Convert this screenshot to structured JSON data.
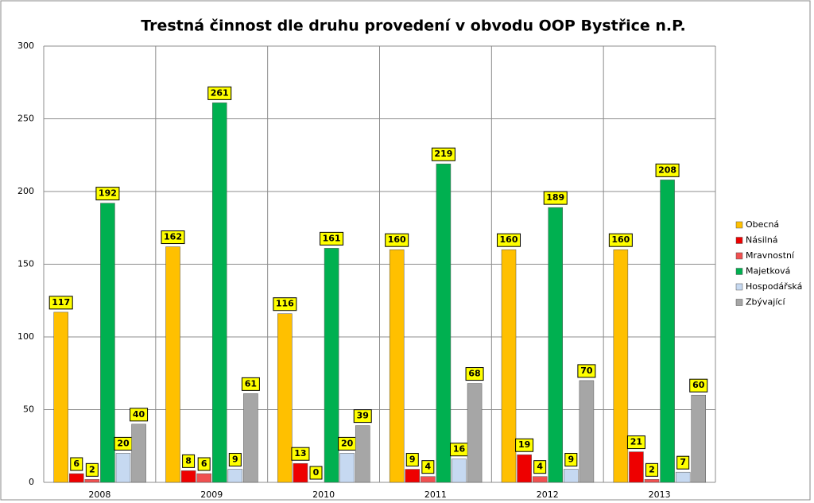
{
  "chart_data": {
    "type": "bar",
    "title": "Trestná činnost dle druhu provedení v obvodu OOP Bystřice n.P.",
    "categories": [
      "2008",
      "2009",
      "2010",
      "2011",
      "2012",
      "2013"
    ],
    "series": [
      {
        "name": "Obecná",
        "color": "#ffc000",
        "values": [
          117,
          162,
          116,
          160,
          160,
          160
        ]
      },
      {
        "name": "Násilná",
        "color": "#ee0000",
        "values": [
          6,
          8,
          13,
          9,
          19,
          21
        ]
      },
      {
        "name": "Mravnostní",
        "color": "#f05050",
        "values": [
          2,
          6,
          0,
          4,
          4,
          2
        ]
      },
      {
        "name": "Majetková",
        "color": "#00b050",
        "values": [
          192,
          261,
          161,
          219,
          189,
          208
        ]
      },
      {
        "name": "Hospodářská",
        "color": "#c6d9f1",
        "values": [
          20,
          9,
          20,
          16,
          9,
          7
        ]
      },
      {
        "name": "Zbývající",
        "color": "#a6a6a6",
        "values": [
          40,
          61,
          39,
          68,
          70,
          60
        ]
      }
    ],
    "ylim": [
      0,
      300
    ],
    "yticks": [
      0,
      50,
      100,
      150,
      200,
      250,
      300
    ],
    "grid": true,
    "legend": "right"
  }
}
